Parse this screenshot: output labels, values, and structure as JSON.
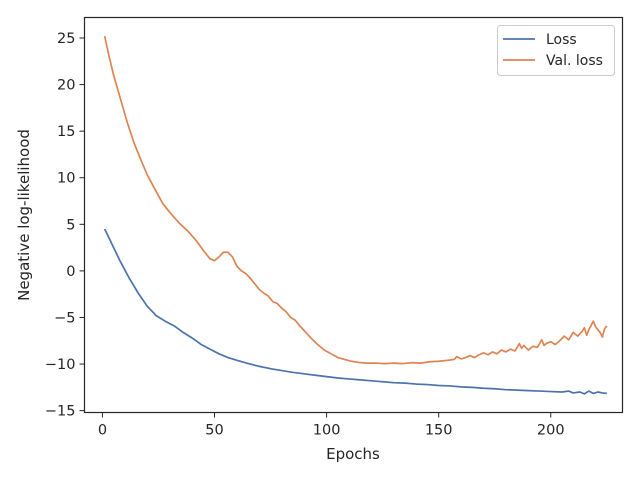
{
  "chart_data": {
    "type": "line",
    "title": "",
    "xlabel": "Epochs",
    "ylabel": "Negative log-likelihood",
    "xlim": [
      -8,
      232
    ],
    "ylim": [
      -15.2,
      27.2
    ],
    "xticks": [
      0,
      50,
      100,
      150,
      200
    ],
    "yticks": [
      -15,
      -10,
      -5,
      0,
      5,
      10,
      15,
      20,
      25
    ],
    "grid": false,
    "legend_position": "top-right",
    "series": [
      {
        "name": "Loss",
        "color": "#4c72b0",
        "points": [
          [
            1,
            4.5
          ],
          [
            3,
            3.5
          ],
          [
            5,
            2.5
          ],
          [
            8,
            1.0
          ],
          [
            12,
            -0.8
          ],
          [
            16,
            -2.4
          ],
          [
            20,
            -3.8
          ],
          [
            24,
            -4.8
          ],
          [
            28,
            -5.4
          ],
          [
            32,
            -5.9
          ],
          [
            36,
            -6.6
          ],
          [
            40,
            -7.2
          ],
          [
            44,
            -7.9
          ],
          [
            48,
            -8.4
          ],
          [
            52,
            -8.9
          ],
          [
            56,
            -9.3
          ],
          [
            60,
            -9.6
          ],
          [
            65,
            -9.95
          ],
          [
            70,
            -10.25
          ],
          [
            75,
            -10.5
          ],
          [
            80,
            -10.7
          ],
          [
            85,
            -10.9
          ],
          [
            90,
            -11.05
          ],
          [
            95,
            -11.2
          ],
          [
            100,
            -11.35
          ],
          [
            105,
            -11.5
          ],
          [
            110,
            -11.6
          ],
          [
            115,
            -11.7
          ],
          [
            120,
            -11.8
          ],
          [
            125,
            -11.9
          ],
          [
            130,
            -12.0
          ],
          [
            135,
            -12.05
          ],
          [
            140,
            -12.15
          ],
          [
            145,
            -12.2
          ],
          [
            150,
            -12.3
          ],
          [
            155,
            -12.35
          ],
          [
            160,
            -12.45
          ],
          [
            165,
            -12.5
          ],
          [
            170,
            -12.6
          ],
          [
            175,
            -12.65
          ],
          [
            180,
            -12.75
          ],
          [
            185,
            -12.8
          ],
          [
            190,
            -12.85
          ],
          [
            195,
            -12.9
          ],
          [
            200,
            -12.95
          ],
          [
            205,
            -13.0
          ],
          [
            208,
            -12.9
          ],
          [
            210,
            -13.1
          ],
          [
            213,
            -13.0
          ],
          [
            215,
            -13.2
          ],
          [
            217,
            -12.9
          ],
          [
            219,
            -13.15
          ],
          [
            221,
            -13.0
          ],
          [
            223,
            -13.1
          ],
          [
            225,
            -13.15
          ]
        ]
      },
      {
        "name": "Val. loss",
        "color": "#dd8452",
        "points": [
          [
            1,
            25.2
          ],
          [
            3,
            23.0
          ],
          [
            5,
            21.0
          ],
          [
            8,
            18.5
          ],
          [
            11,
            16.0
          ],
          [
            14,
            13.8
          ],
          [
            17,
            12.0
          ],
          [
            20,
            10.3
          ],
          [
            24,
            8.5
          ],
          [
            27,
            7.2
          ],
          [
            30,
            6.3
          ],
          [
            34,
            5.2
          ],
          [
            38,
            4.3
          ],
          [
            42,
            3.2
          ],
          [
            45,
            2.2
          ],
          [
            48,
            1.3
          ],
          [
            50,
            1.1
          ],
          [
            52,
            1.5
          ],
          [
            54,
            2.0
          ],
          [
            56,
            2.0
          ],
          [
            58,
            1.5
          ],
          [
            60,
            0.5
          ],
          [
            62,
            0.0
          ],
          [
            64,
            -0.3
          ],
          [
            66,
            -0.8
          ],
          [
            68,
            -1.4
          ],
          [
            70,
            -2.0
          ],
          [
            72,
            -2.4
          ],
          [
            74,
            -2.7
          ],
          [
            76,
            -3.3
          ],
          [
            78,
            -3.5
          ],
          [
            80,
            -4.0
          ],
          [
            82,
            -4.4
          ],
          [
            84,
            -5.0
          ],
          [
            86,
            -5.3
          ],
          [
            88,
            -5.9
          ],
          [
            90,
            -6.4
          ],
          [
            93,
            -7.2
          ],
          [
            96,
            -7.9
          ],
          [
            99,
            -8.5
          ],
          [
            102,
            -8.9
          ],
          [
            105,
            -9.3
          ],
          [
            108,
            -9.5
          ],
          [
            111,
            -9.7
          ],
          [
            115,
            -9.85
          ],
          [
            118,
            -9.9
          ],
          [
            122,
            -9.9
          ],
          [
            126,
            -9.95
          ],
          [
            130,
            -9.9
          ],
          [
            134,
            -9.95
          ],
          [
            138,
            -9.85
          ],
          [
            142,
            -9.9
          ],
          [
            146,
            -9.75
          ],
          [
            150,
            -9.7
          ],
          [
            154,
            -9.6
          ],
          [
            157,
            -9.5
          ],
          [
            158,
            -9.2
          ],
          [
            160,
            -9.45
          ],
          [
            162,
            -9.3
          ],
          [
            164,
            -9.1
          ],
          [
            166,
            -9.3
          ],
          [
            168,
            -9.0
          ],
          [
            170,
            -8.8
          ],
          [
            172,
            -9.0
          ],
          [
            174,
            -8.7
          ],
          [
            176,
            -8.9
          ],
          [
            178,
            -8.5
          ],
          [
            180,
            -8.7
          ],
          [
            182,
            -8.4
          ],
          [
            184,
            -8.6
          ],
          [
            186,
            -7.8
          ],
          [
            187,
            -8.3
          ],
          [
            188,
            -8.0
          ],
          [
            190,
            -8.5
          ],
          [
            192,
            -8.1
          ],
          [
            194,
            -8.2
          ],
          [
            196,
            -7.4
          ],
          [
            197,
            -8.0
          ],
          [
            198,
            -7.8
          ],
          [
            200,
            -7.6
          ],
          [
            202,
            -7.9
          ],
          [
            204,
            -7.5
          ],
          [
            206,
            -7.0
          ],
          [
            208,
            -7.4
          ],
          [
            210,
            -6.6
          ],
          [
            212,
            -7.0
          ],
          [
            214,
            -6.5
          ],
          [
            215,
            -6.1
          ],
          [
            216,
            -6.9
          ],
          [
            217,
            -6.3
          ],
          [
            219,
            -5.4
          ],
          [
            220,
            -6.0
          ],
          [
            222,
            -6.6
          ],
          [
            223,
            -7.1
          ],
          [
            224,
            -6.2
          ],
          [
            225,
            -5.9
          ]
        ]
      }
    ]
  }
}
